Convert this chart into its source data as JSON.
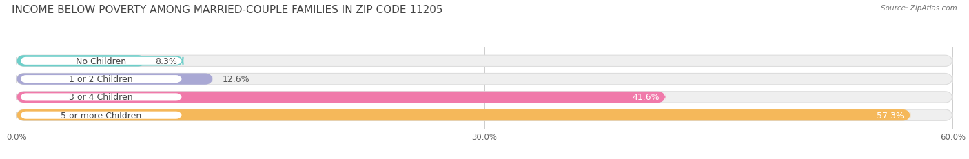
{
  "title": "INCOME BELOW POVERTY AMONG MARRIED-COUPLE FAMILIES IN ZIP CODE 11205",
  "source": "Source: ZipAtlas.com",
  "categories": [
    "No Children",
    "1 or 2 Children",
    "3 or 4 Children",
    "5 or more Children"
  ],
  "values": [
    8.3,
    12.6,
    41.6,
    57.3
  ],
  "bar_colors": [
    "#6ecfca",
    "#a9a8d4",
    "#f07aaa",
    "#f5b85a"
  ],
  "bar_bg_color": "#efefef",
  "xlim": [
    0,
    60
  ],
  "xtick_labels": [
    "0.0%",
    "30.0%",
    "60.0%"
  ],
  "background_color": "#ffffff",
  "title_fontsize": 11,
  "label_fontsize": 9,
  "value_fontsize": 9,
  "bar_height": 0.62,
  "bar_label_color_dark": "#555555",
  "bar_label_color_light": "#ffffff",
  "pill_bg": "#ffffff",
  "pill_text_color": "#444444"
}
